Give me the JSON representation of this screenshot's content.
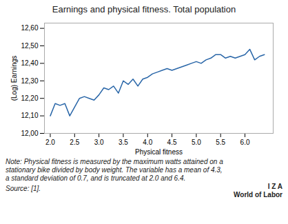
{
  "chart_data": {
    "type": "line",
    "title": "Earnings and physical fitness. Total population",
    "xlabel": "Physical fitness",
    "ylabel": "(Log) Earnings",
    "color": "#2966a8",
    "x": [
      2.0,
      2.1,
      2.2,
      2.3,
      2.4,
      2.5,
      2.6,
      2.7,
      2.8,
      2.9,
      3.0,
      3.1,
      3.2,
      3.3,
      3.4,
      3.5,
      3.6,
      3.7,
      3.8,
      3.9,
      4.0,
      4.1,
      4.2,
      4.3,
      4.4,
      4.5,
      4.6,
      4.7,
      4.8,
      4.9,
      5.0,
      5.1,
      5.2,
      5.3,
      5.4,
      5.5,
      5.6,
      5.7,
      5.8,
      5.9,
      6.0,
      6.1,
      6.2,
      6.3,
      6.4
    ],
    "values": [
      12.1,
      12.17,
      12.16,
      12.17,
      12.1,
      12.15,
      12.2,
      12.21,
      12.2,
      12.19,
      12.22,
      12.26,
      12.25,
      12.27,
      12.23,
      12.3,
      12.28,
      12.31,
      12.27,
      12.31,
      12.32,
      12.34,
      12.35,
      12.36,
      12.37,
      12.36,
      12.37,
      12.38,
      12.39,
      12.4,
      12.41,
      12.4,
      12.42,
      12.43,
      12.45,
      12.45,
      12.43,
      12.44,
      12.43,
      12.44,
      12.45,
      12.48,
      12.42,
      12.44,
      12.45
    ],
    "xlim": [
      1.88,
      6.58
    ],
    "ylim": [
      12.0,
      12.63
    ],
    "xticks": [
      {
        "value": 2,
        "label": "2.0"
      },
      2.5,
      {
        "value": 3,
        "label": "3.0"
      },
      3.5,
      {
        "value": 4,
        "label": "4.0"
      },
      4.5,
      {
        "value": 5,
        "label": "5.0"
      },
      5.5,
      {
        "value": 6,
        "label": "6.0"
      }
    ],
    "yticks": [
      {
        "value": 12.0,
        "label": "12,00"
      },
      {
        "value": 12.1,
        "label": "12,10"
      },
      {
        "value": 12.2,
        "label": "12,20"
      },
      {
        "value": 12.3,
        "label": "12,30"
      },
      {
        "value": 12.4,
        "label": "12,40"
      },
      {
        "value": 12.5,
        "label": "12,50"
      },
      {
        "value": 12.6,
        "label": "12,60"
      }
    ],
    "grid": false,
    "annotations": [
      "Note: Physical fitness is measured by the maximum watts attained on a",
      "stationary bike divided by body weight. The variable has a mean of 4.3,",
      "a standard deviation of 0.7, and is truncated at 2.0 and 6.4.",
      "Source: [1].",
      "I Z A",
      "World of Labor"
    ]
  }
}
